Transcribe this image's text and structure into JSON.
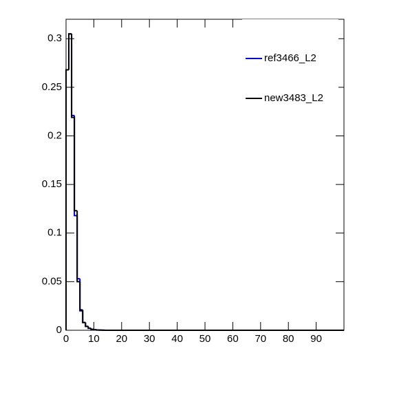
{
  "chart_data": {
    "type": "histogram",
    "bins": [
      0,
      1,
      2,
      3,
      4,
      5,
      6,
      7,
      8,
      9,
      10,
      11,
      12,
      13,
      14,
      15,
      16,
      17,
      18,
      19,
      20,
      21,
      22,
      23,
      24,
      25,
      26,
      27,
      28,
      29,
      30,
      31,
      32,
      33,
      34,
      35,
      36,
      37,
      38,
      39,
      40,
      41,
      42,
      43,
      44,
      45,
      46,
      47,
      48,
      49,
      50,
      51,
      52,
      53,
      54,
      55,
      56,
      57,
      58,
      59,
      60,
      61,
      62,
      63,
      64,
      65,
      66,
      67,
      68,
      69,
      70,
      71,
      72,
      73,
      74,
      75,
      76,
      77,
      78,
      79,
      80,
      81,
      82,
      83,
      84,
      85,
      86,
      87,
      88,
      89,
      90,
      91,
      92,
      93,
      94,
      95,
      96,
      97,
      98,
      99,
      100
    ],
    "series": [
      {
        "name": "ref3466_L2",
        "color": "#0000cc",
        "values": [
          0.268,
          0.305,
          0.221,
          0.118,
          0.053,
          0.02,
          0.008,
          0.004,
          0.002,
          0.001,
          0.0005,
          0.0003,
          0.0002,
          0.0001,
          0,
          0,
          0,
          0,
          0,
          0,
          0,
          0,
          0,
          0,
          0,
          0,
          0,
          0,
          0,
          0,
          0,
          0,
          0,
          0,
          0,
          0,
          0,
          0,
          0,
          0,
          0,
          0,
          0,
          0,
          0,
          0,
          0,
          0,
          0,
          0,
          0,
          0,
          0,
          0,
          0,
          0,
          0,
          0,
          0,
          0,
          0,
          0,
          0,
          0,
          0,
          0,
          0,
          0,
          0,
          0,
          0,
          0,
          0,
          0,
          0,
          0,
          0,
          0,
          0,
          0,
          0,
          0,
          0,
          0,
          0,
          0,
          0,
          0,
          0,
          0,
          0,
          0,
          0,
          0,
          0,
          0,
          0,
          0,
          0,
          0
        ]
      },
      {
        "name": "new3483_L2",
        "color": "#000000",
        "values": [
          0.268,
          0.305,
          0.219,
          0.123,
          0.05,
          0.021,
          0.008,
          0.004,
          0.002,
          0.001,
          0.0005,
          0.0003,
          0.0002,
          0.0001,
          0,
          0,
          0,
          0,
          0,
          0,
          0,
          0,
          0,
          0,
          0,
          0,
          0,
          0,
          0,
          0,
          0,
          0,
          0,
          0,
          0,
          0,
          0,
          0,
          0,
          0,
          0,
          0,
          0,
          0,
          0,
          0,
          0,
          0,
          0,
          0,
          0,
          0,
          0,
          0,
          0,
          0,
          0,
          0,
          0,
          0,
          0,
          0,
          0,
          0,
          0,
          0,
          0,
          0,
          0,
          0,
          0,
          0,
          0,
          0,
          0,
          0,
          0,
          0,
          0,
          0,
          0,
          0,
          0,
          0,
          0,
          0,
          0,
          0,
          0,
          0,
          0,
          0,
          0,
          0,
          0,
          0,
          0,
          0,
          0,
          0
        ]
      }
    ],
    "xlim": [
      0,
      100
    ],
    "ylim": [
      0,
      0.32
    ],
    "xticks": [
      0,
      10,
      20,
      30,
      40,
      50,
      60,
      70,
      80,
      90
    ],
    "yticks": [
      0,
      0.05,
      0.1,
      0.15,
      0.2,
      0.25,
      0.3
    ],
    "legend": "top-right"
  }
}
